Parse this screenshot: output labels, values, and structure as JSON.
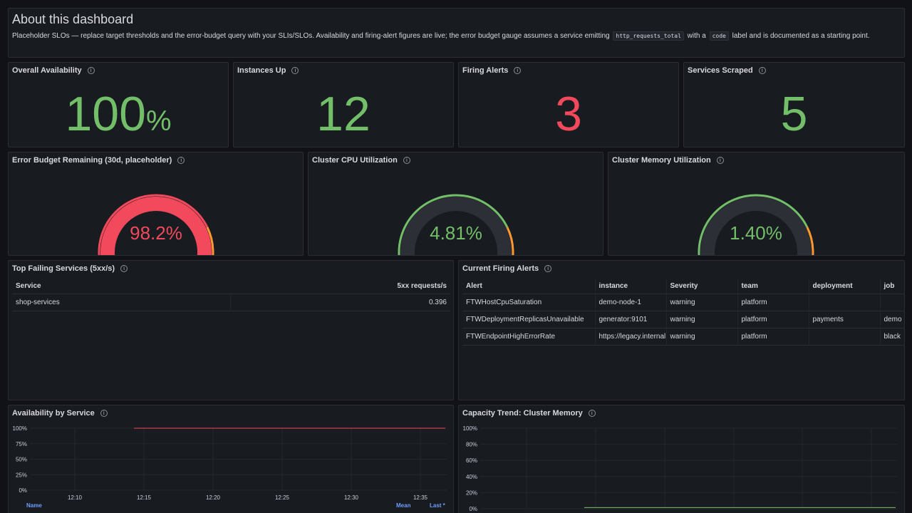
{
  "about": {
    "title": "About this dashboard",
    "text_before": "Placeholder SLOs — replace target thresholds and the error-budget query with your SLIs/SLOs. Availability and firing-alert figures are live; the error budget gauge assumes a service emitting",
    "code1": "http_requests_total",
    "text_mid": "with a",
    "code2": "code",
    "text_after": "label and is documented as a starting point."
  },
  "stats": [
    {
      "title": "Overall Availability",
      "value": "100",
      "unit": "%",
      "color": "#73bf69"
    },
    {
      "title": "Instances Up",
      "value": "12",
      "unit": "",
      "color": "#73bf69"
    },
    {
      "title": "Firing Alerts",
      "value": "3",
      "unit": "",
      "color": "#f2495c"
    },
    {
      "title": "Services Scraped",
      "value": "5",
      "unit": "",
      "color": "#73bf69"
    }
  ],
  "gauges": [
    {
      "title": "Error Budget Remaining (30d, placeholder)",
      "value": "98.2%",
      "fraction": 0.982,
      "color": "#f2495c",
      "thresholds": [
        "#f2495c",
        "#ff9830",
        "#73bf69"
      ]
    },
    {
      "title": "Cluster CPU Utilization",
      "value": "4.81%",
      "fraction": 0.0481,
      "color": "#73bf69",
      "thresholds": [
        "#73bf69",
        "#ff9830",
        "#f2495c"
      ]
    },
    {
      "title": "Cluster Memory Utilization",
      "value": "1.40%",
      "fraction": 0.014,
      "color": "#73bf69",
      "thresholds": [
        "#73bf69",
        "#ff9830",
        "#f2495c"
      ]
    }
  ],
  "failing": {
    "title": "Top Failing Services (5xx/s)",
    "headers": [
      "Service",
      "5xx requests/s"
    ],
    "rows": [
      [
        "shop-services",
        "0.396"
      ]
    ]
  },
  "alerts": {
    "title": "Current Firing Alerts",
    "headers": [
      "Alert",
      "instance",
      "Severity",
      "team",
      "deployment",
      "job"
    ],
    "rows": [
      [
        "FTWHostCpuSaturation",
        "demo-node-1",
        "warning",
        "platform",
        "",
        ""
      ],
      [
        "FTWDeploymentReplicasUnavailable",
        "generator:9101",
        "warning",
        "platform",
        "payments",
        "demo"
      ],
      [
        "FTWEndpointHighErrorRate",
        "https://legacy.internal",
        "warning",
        "platform",
        "",
        "black"
      ]
    ]
  },
  "availability": {
    "title": "Availability by Service",
    "legend": {
      "name": "Name",
      "mean": "Mean",
      "last": "Last *"
    }
  },
  "capacity": {
    "title": "Capacity Trend: Cluster Memory"
  },
  "chart_data": [
    {
      "type": "line",
      "title": "Availability by Service",
      "x": [
        "12:14",
        "12:37"
      ],
      "series": [
        {
          "values": [
            100,
            100
          ],
          "color": "#f2495c"
        }
      ],
      "yticks": [
        "0%",
        "25%",
        "50%",
        "75%",
        "100%"
      ],
      "xticks": [
        "12:10",
        "12:15",
        "12:20",
        "12:25",
        "12:30",
        "12:35"
      ],
      "ylim": [
        0,
        100
      ]
    },
    {
      "type": "line",
      "title": "Capacity Trend: Cluster Memory",
      "x": [
        "12:15",
        "12:37"
      ],
      "series": [
        {
          "values": [
            1.4,
            1.4
          ],
          "color": "#73bf69"
        }
      ],
      "yticks": [
        "0%",
        "20%",
        "40%",
        "60%",
        "80%",
        "100%"
      ],
      "ylim": [
        0,
        100
      ]
    }
  ]
}
